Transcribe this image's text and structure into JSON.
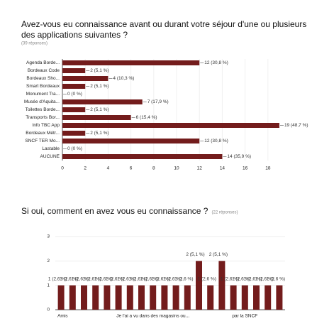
{
  "chart_data": [
    {
      "type": "bar",
      "orientation": "horizontal",
      "title": "Avez-vous eu connaissance avant ou durant votre séjour d'une ou plusieurs",
      "title_line2": "des applications suivantes ?",
      "subtitle": "(39 réponses)",
      "categories": [
        "Agenda Borde...",
        "Bordeaux Code",
        "Bordeaux Sho...",
        "Smart Bordeaux",
        "Monument Tra...",
        "Musée d'Aquita...",
        "Toilettes Borde...",
        "Transports Bor...",
        "Info TBC App",
        "Bordeaux Métr...",
        "SNCF TER Mo...",
        "Lastable",
        "AUCUNE"
      ],
      "values": [
        12,
        2,
        4,
        2,
        0,
        7,
        2,
        6,
        19,
        2,
        12,
        0,
        14
      ],
      "value_labels": [
        "12 (30,8 %)",
        "2 (5,1 %)",
        "4 (10,3 %)",
        "2 (5,1 %)",
        "0 (0 %)",
        "7 (17,9 %)",
        "2 (5,1 %)",
        "6 (15,4 %)",
        "19 (48,7 %)",
        "2 (5,1 %)",
        "12 (30,8 %)",
        "0 (0 %)",
        "14 (35,9 %)"
      ],
      "color": "#731c1c",
      "xlim": [
        0,
        19.5
      ],
      "xticks": [
        0,
        2,
        4,
        6,
        8,
        10,
        12,
        14,
        16,
        18
      ],
      "grid": true
    },
    {
      "type": "bar",
      "orientation": "vertical",
      "title": "Si oui, comment en avez vous eu connaissance ?",
      "subtitle": "(22 réponses)",
      "categories": [
        "Amis",
        null,
        null,
        null,
        null,
        null,
        null,
        null,
        "Je l'ai a vu dans des magasins ou...",
        null,
        null,
        null,
        null,
        null,
        null,
        null,
        "par la SNCF",
        null,
        null,
        null
      ],
      "values": [
        1,
        1,
        1,
        1,
        1,
        1,
        1,
        1,
        1,
        1,
        1,
        1,
        2,
        1,
        2,
        1,
        1,
        1,
        1,
        1
      ],
      "value_labels": [
        "1 (2,6 %)",
        "1 (2,6 %)",
        "1 (2,6 %)",
        "1 (2,6 %)",
        "1 (2,6 %)",
        "1 (2,6 %)",
        "1 (2,6 %)",
        "1 (2,6 %)",
        "1 (2,6 %)",
        "1 (2,6 %)",
        "1 (2,6 %)",
        "1 (2,6 %)",
        "2 (5,1 %)",
        "1 (2,6 %)",
        "2 (5,1 %)",
        "1 (2,6 %)",
        "1 (2,6 %)",
        "1 (2,6 %)",
        "1 (2,6 %)",
        "1 (2,6 %)"
      ],
      "color": "#731c1c",
      "ylim": [
        0,
        3
      ],
      "yticks": [
        0,
        1,
        2,
        3
      ],
      "grid": true
    }
  ]
}
